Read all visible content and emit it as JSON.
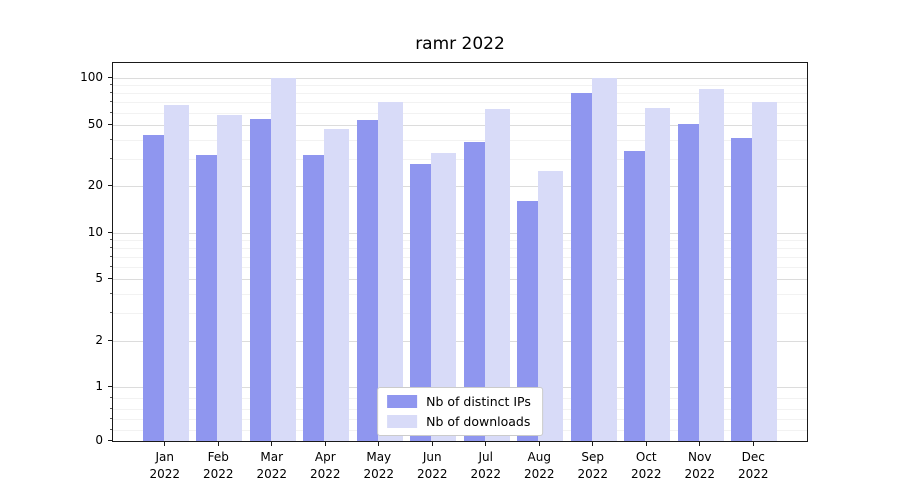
{
  "chart_data": {
    "type": "bar",
    "title": "ramr 2022",
    "xlabel": "",
    "ylabel": "",
    "yscale": "symlog",
    "ylim": [
      0,
      100
    ],
    "yticks": [
      0,
      1,
      2,
      5,
      10,
      20,
      50,
      100
    ],
    "grid": true,
    "legend_position": "lower center",
    "categories": [
      "Jan 2022",
      "Feb 2022",
      "Mar 2022",
      "Apr 2022",
      "May 2022",
      "Jun 2022",
      "Jul 2022",
      "Aug 2022",
      "Sep 2022",
      "Oct 2022",
      "Nov 2022",
      "Dec 2022"
    ],
    "series": [
      {
        "name": "Nb of distinct IPs",
        "color": "#8f96ef",
        "values": [
          43,
          32,
          55,
          32,
          54,
          28,
          39,
          16,
          80,
          34,
          51,
          41
        ]
      },
      {
        "name": "Nb of downloads",
        "color": "#d8dbf8",
        "values": [
          67,
          58,
          100,
          47,
          70,
          33,
          63,
          25,
          100,
          64,
          86,
          70
        ]
      }
    ]
  }
}
